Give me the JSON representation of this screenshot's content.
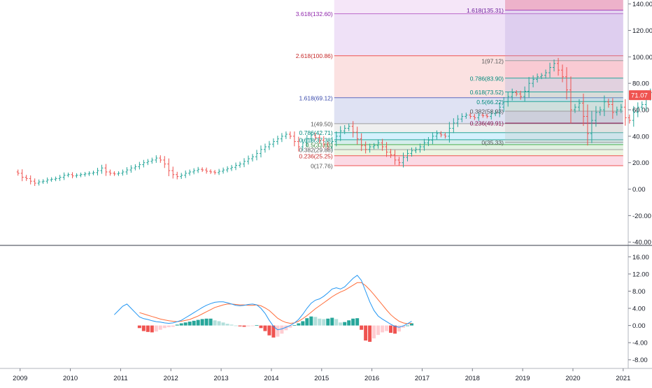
{
  "colors": {
    "up": "#26a69a",
    "down": "#ef5350",
    "macd_line": "#2196f3",
    "signal_line": "#ff6d3a",
    "hist_up_strong": "#26a69a",
    "hist_up_weak": "#b2dfdb",
    "hist_down_strong": "#ef5350",
    "hist_down_weak": "#ffcdd2",
    "last_price_bg": "#ef5350",
    "grid_border": "#b2b5be"
  },
  "price_axis": {
    "ticks": [
      140,
      120,
      100,
      80,
      60,
      40,
      20,
      0,
      -20,
      -40
    ],
    "tick_labels": [
      "140.00",
      "120.00",
      "100.00",
      "80.00",
      "60.00",
      "40.00",
      "20.00",
      "0.00",
      "-20.00",
      "-40.00"
    ],
    "range": [
      -42,
      143
    ],
    "last_price": 71.07,
    "last_price_label": "71.07"
  },
  "macd_axis": {
    "ticks": [
      16,
      12,
      8,
      4,
      0,
      -4,
      -8
    ],
    "tick_labels": [
      "16.00",
      "12.00",
      "8.00",
      "4.00",
      "0.00",
      "-4.00",
      "-8.00"
    ],
    "range": [
      -10,
      18.5
    ]
  },
  "time_axis": {
    "labels": [
      "2009",
      "2010",
      "2011",
      "2012",
      "2013",
      "2014",
      "2015",
      "2016",
      "2017",
      "2018",
      "2019",
      "2020",
      "2021"
    ],
    "years": [
      2009,
      2010,
      2011,
      2012,
      2013,
      2014,
      2015,
      2016,
      2017,
      2018,
      2019,
      2020,
      2021
    ],
    "range": [
      2008.6,
      2021.1
    ]
  },
  "chart_data": {
    "type": "candlestick",
    "interval": "monthly",
    "start": "2008-12",
    "close": [
      12.0,
      9.0,
      8.0,
      6.0,
      4.5,
      5.5,
      6.0,
      7.0,
      7.5,
      8.0,
      9.0,
      10.5,
      11.0,
      10.0,
      10.5,
      11.0,
      11.5,
      12.0,
      12.5,
      14.0,
      16.0,
      13.0,
      12.0,
      11.5,
      12.0,
      13.0,
      14.5,
      16.0,
      17.0,
      18.5,
      20.0,
      21.0,
      22.0,
      23.5,
      22.0,
      19.0,
      14.0,
      11.0,
      9.5,
      10.5,
      12.0,
      13.0,
      14.0,
      15.0,
      14.5,
      13.5,
      13.0,
      12.5,
      13.5,
      14.5,
      15.5,
      16.5,
      18.0,
      19.0,
      21.0,
      23.0,
      24.5,
      27.0,
      30.0,
      32.0,
      34.0,
      36.0,
      38.0,
      40.0,
      41.5,
      40.0,
      36.0,
      32.0,
      35.0,
      38.0,
      40.5,
      39.0,
      37.0,
      34.0,
      32.0,
      36.0,
      40.0,
      44.0,
      46.0,
      47.5,
      43.0,
      38.0,
      33.0,
      30.0,
      32.0,
      33.0,
      35.0,
      32.0,
      28.0,
      26.0,
      22.0,
      20.0,
      24.0,
      27.0,
      29.0,
      30.0,
      32.0,
      35.0,
      37.0,
      40.0,
      42.0,
      41.0,
      40.0,
      46.0,
      50.0,
      53.0,
      55.0,
      56.0,
      55.0,
      54.0,
      56.0,
      55.5,
      55.0,
      57.0,
      58.0,
      62.0,
      66.0,
      70.0,
      73.0,
      72.0,
      70.0,
      74.0,
      80.0,
      83.0,
      85.0,
      86.0,
      88.0,
      92.0,
      95.0,
      90.0,
      85.0,
      75.0,
      60.0,
      62.0,
      65.0,
      55.0,
      42.0,
      52.0,
      58.0,
      60.0,
      66.0,
      64.0,
      58.0,
      60.0,
      62.0,
      54.0,
      52.0,
      58.0,
      62.0,
      64.0,
      70.0,
      73.0,
      71.07
    ],
    "price_range": [
      -42,
      143
    ],
    "fibonacci": [
      {
        "anchor": "2015 low to 2018 high",
        "from": 2015.25,
        "to": 2021.0,
        "base": 17.76,
        "levels": [
          {
            "ratio": "0",
            "value": 17.76,
            "label": "0(17.76)"
          },
          {
            "ratio": "0.236",
            "value": 25.25,
            "label": "0.236(25.25)"
          },
          {
            "ratio": "0.382",
            "value": 29.88,
            "label": "0.382(29.88)"
          },
          {
            "ratio": "0.5",
            "value": 33.63,
            "label": "0.5(33.63)"
          },
          {
            "ratio": "0.618",
            "value": 37.38,
            "label": "0.618(37.38)"
          },
          {
            "ratio": "0.786",
            "value": 42.71,
            "label": "0.786(42.71)"
          },
          {
            "ratio": "1",
            "value": 49.5,
            "label": "1(49.50)"
          },
          {
            "ratio": "1.618",
            "value": 69.12,
            "label": "1.618(69.12)"
          },
          {
            "ratio": "2.618",
            "value": 100.86,
            "label": "2.618(100.86)"
          },
          {
            "ratio": "3.618",
            "value": 132.6,
            "label": "3.618(132.60)"
          }
        ]
      },
      {
        "anchor": "2018 high retracement",
        "from": 2018.65,
        "to": 2021.0,
        "levels": [
          {
            "ratio": "0",
            "value": 35.33,
            "label": "0(35.33)"
          },
          {
            "ratio": "0.236",
            "value": 49.91,
            "label": "0.236(49.91)"
          },
          {
            "ratio": "0.382",
            "value": 58.93,
            "label": "0.382(58.93)"
          },
          {
            "ratio": "0.5",
            "value": 66.22,
            "label": "0.5(66.22)"
          },
          {
            "ratio": "0.618",
            "value": 73.52,
            "label": "0.618(73.52)"
          },
          {
            "ratio": "0.786",
            "value": 83.9,
            "label": "0.786(83.90)"
          },
          {
            "ratio": "1",
            "value": 97.12,
            "label": "1(97.12)"
          },
          {
            "ratio": "1.618",
            "value": 135.31,
            "label": "1.618(135.31)"
          }
        ]
      }
    ],
    "macd": {
      "indicator": "MACD",
      "start": "2010-11",
      "macd_line": [
        2.5,
        3.5,
        4.5,
        5.0,
        4.0,
        3.0,
        2.0,
        1.6,
        1.4,
        1.1,
        0.9,
        0.8,
        0.6,
        0.5,
        0.6,
        0.9,
        1.2,
        1.8,
        2.4,
        3.0,
        3.6,
        4.2,
        4.7,
        5.1,
        5.4,
        5.5,
        5.5,
        5.3,
        5.0,
        4.7,
        4.6,
        4.7,
        4.9,
        5.0,
        4.8,
        4.0,
        2.8,
        1.2,
        -0.2,
        -1.0,
        -0.8,
        -0.4,
        0.0,
        0.6,
        1.4,
        2.6,
        4.0,
        5.2,
        5.9,
        6.2,
        6.8,
        7.6,
        8.5,
        8.8,
        8.5,
        9.0,
        10.0,
        11.0,
        11.7,
        10.5,
        8.0,
        5.5,
        3.5,
        2.2,
        1.5,
        0.9,
        0.3,
        -0.2,
        -0.4,
        -0.1,
        0.4,
        1.0
      ],
      "signal_line": [
        null,
        null,
        null,
        null,
        null,
        null,
        3.0,
        2.7,
        2.4,
        2.1,
        1.8,
        1.5,
        1.3,
        1.1,
        1.0,
        0.9,
        1.0,
        1.2,
        1.4,
        1.8,
        2.2,
        2.7,
        3.2,
        3.7,
        4.2,
        4.5,
        4.8,
        5.0,
        5.0,
        4.9,
        4.8,
        4.8,
        4.7,
        4.7,
        4.8,
        4.6,
        4.1,
        3.5,
        2.6,
        1.7,
        1.1,
        0.7,
        0.5,
        0.6,
        1.0,
        1.6,
        2.3,
        3.1,
        3.9,
        4.6,
        5.3,
        6.0,
        6.7,
        7.3,
        7.8,
        8.2,
        8.8,
        9.4,
        10.0,
        10.0,
        9.3,
        8.3,
        7.2,
        6.0,
        4.8,
        3.6,
        2.5,
        1.7,
        1.0,
        0.6,
        0.4,
        0.5
      ],
      "histogram": [
        null,
        null,
        null,
        null,
        null,
        null,
        -0.6,
        -1.3,
        -1.5,
        -1.6,
        -1.4,
        -1.0,
        -0.6,
        -0.4,
        -0.3,
        0.2,
        0.5,
        0.7,
        0.9,
        1.1,
        1.3,
        1.5,
        1.6,
        1.6,
        1.2,
        1.0,
        0.7,
        0.4,
        0.2,
        0.0,
        -0.2,
        -0.3,
        -0.2,
        -0.1,
        0.1,
        -0.6,
        -1.3,
        -2.3,
        -2.8,
        -2.6,
        -1.9,
        -1.1,
        -0.5,
        0.1,
        0.5,
        1.0,
        1.7,
        2.1,
        2.0,
        1.6,
        1.5,
        1.6,
        1.8,
        1.5,
        0.7,
        0.8,
        1.2,
        1.6,
        1.7,
        -1.0,
        -3.5,
        -3.8,
        -3.0,
        -2.2,
        -1.6,
        -1.3,
        -1.7,
        -1.9,
        -1.4,
        -0.5,
        0.0,
        0.5
      ]
    }
  }
}
